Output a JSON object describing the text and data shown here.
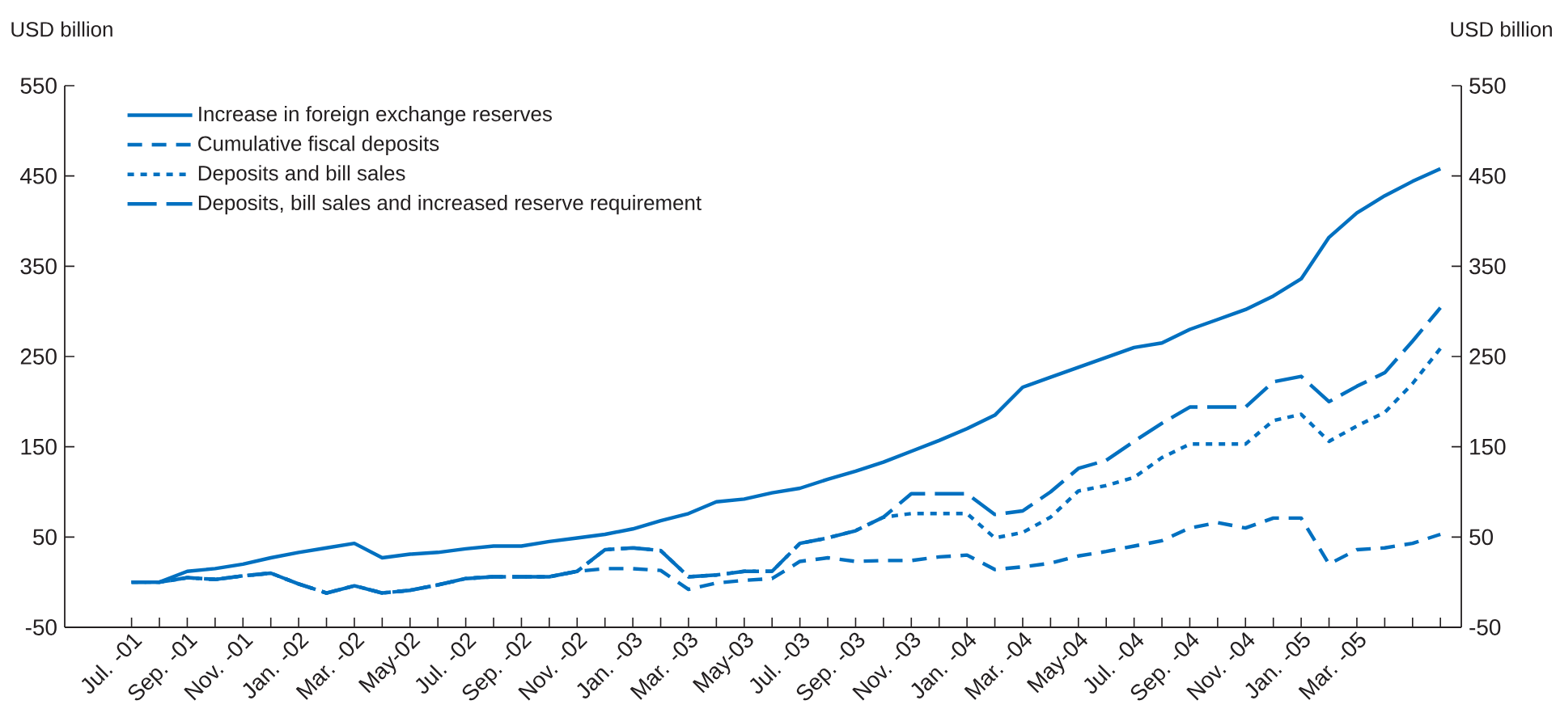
{
  "chart_data": {
    "type": "line",
    "ylabel": "USD billion",
    "y2label": "USD billion",
    "categories": [
      "Jul. -01",
      null,
      "Sep. -01",
      null,
      "Nov. -01",
      null,
      "Jan. -02",
      null,
      "Mar. -02",
      null,
      "May-02",
      null,
      "Jul. -02",
      null,
      "Sep. -02",
      null,
      "Nov. -02",
      null,
      "Jan. -03",
      null,
      "Mar. -03",
      null,
      "May-03",
      null,
      "Jul. -03",
      null,
      "Sep. -03",
      null,
      "Nov. -03",
      null,
      "Jan. -04",
      null,
      "Mar. -04",
      null,
      "May-04",
      null,
      "Jul. -04",
      null,
      "Sep. -04",
      null,
      "Nov. -04",
      null,
      "Jan. -05",
      null,
      "Mar. -05",
      null,
      null,
      null
    ],
    "series": [
      {
        "name": "Increase in foreign exchange reserves",
        "color": "#0070c0",
        "line_style": "solid",
        "values": [
          0,
          0,
          12,
          15,
          20,
          27,
          33,
          38,
          43,
          27,
          31,
          33,
          37,
          40,
          40,
          45,
          49,
          53,
          59,
          68,
          76,
          89,
          92,
          99,
          104,
          114,
          123,
          133,
          145,
          157,
          170,
          185,
          216,
          227,
          238,
          249,
          260,
          265,
          280,
          291,
          302,
          317,
          336,
          382,
          409,
          428,
          444,
          458
        ]
      },
      {
        "name": "Cumulative fiscal deposits",
        "color": "#0070c0",
        "line_style": "dashed",
        "values": [
          0,
          0,
          5,
          3,
          7,
          10,
          -2,
          -12,
          -4,
          -12,
          -9,
          -3,
          4,
          6,
          6,
          6,
          12,
          15,
          15,
          13,
          -8,
          -1,
          2,
          4,
          23,
          27,
          23,
          24,
          24,
          28,
          30,
          14,
          17,
          21,
          29,
          34,
          40,
          46,
          60,
          66,
          60,
          71,
          71,
          20,
          36,
          38,
          43,
          53
        ]
      },
      {
        "name": "Deposits and bill sales",
        "color": "#0070c0",
        "line_style": "dotted",
        "values": [
          0,
          0,
          5,
          3,
          7,
          10,
          -2,
          -12,
          -4,
          -12,
          -9,
          -3,
          4,
          6,
          6,
          6,
          12,
          36,
          38,
          35,
          6,
          8,
          12,
          12,
          43,
          49,
          57,
          72,
          76,
          76,
          76,
          49,
          55,
          72,
          101,
          107,
          116,
          138,
          153,
          153,
          153,
          179,
          186,
          156,
          173,
          188,
          220,
          259
        ]
      },
      {
        "name": "Deposits, bill sales and increased reserve requirement",
        "color": "#0070c0",
        "line_style": "dashed",
        "values": [
          0,
          0,
          5,
          3,
          7,
          10,
          -2,
          -12,
          -4,
          -12,
          -9,
          -3,
          4,
          6,
          6,
          6,
          12,
          36,
          38,
          35,
          6,
          8,
          12,
          12,
          43,
          49,
          57,
          72,
          98,
          98,
          98,
          75,
          79,
          100,
          126,
          135,
          156,
          176,
          194,
          194,
          194,
          222,
          228,
          200,
          217,
          232,
          267,
          304
        ]
      }
    ],
    "ylim": [
      -50,
      550
    ],
    "yticks": [
      -50,
      50,
      150,
      250,
      350,
      450,
      550
    ],
    "y2lim": [
      -50,
      550
    ],
    "y2ticks": [
      -50,
      50,
      150,
      250,
      350,
      450,
      550
    ],
    "grid": false,
    "legend": "top left",
    "marker": "none"
  }
}
